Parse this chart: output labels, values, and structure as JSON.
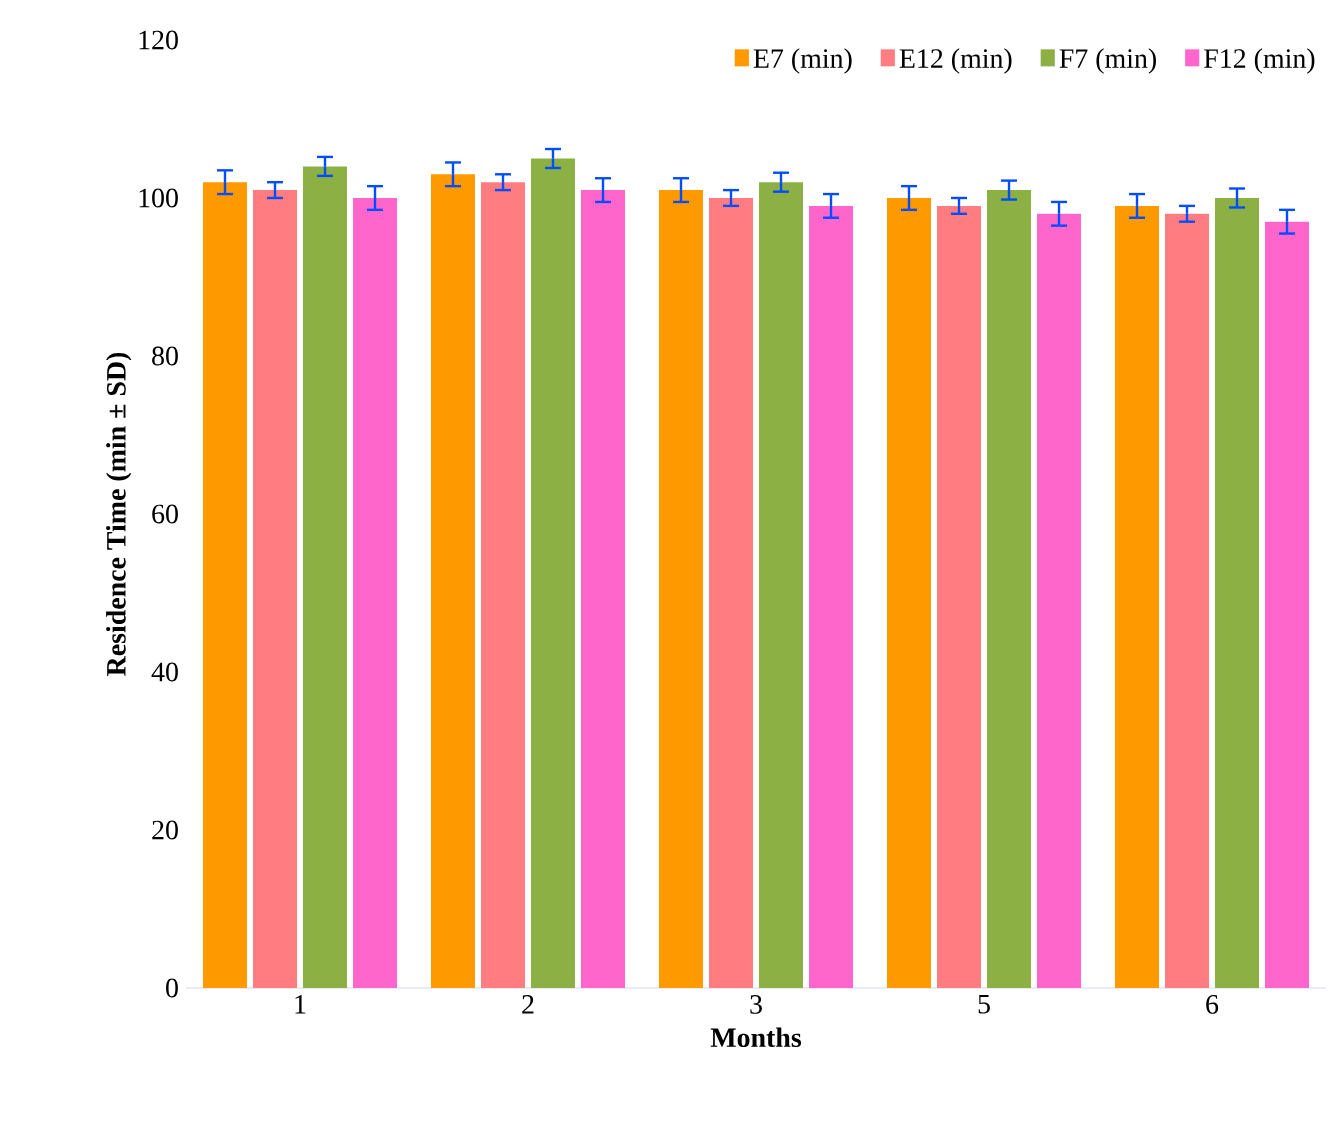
{
  "chart_data": {
    "type": "bar",
    "xlabel": "Months",
    "ylabel": "Residence Time (min ± SD)",
    "categories": [
      "1",
      "2",
      "3",
      "5",
      "6"
    ],
    "ylim": [
      0,
      120
    ],
    "yticks": [
      0,
      20,
      40,
      60,
      80,
      100,
      120
    ],
    "legend": "top right",
    "series": [
      {
        "name": "E7 (min)",
        "color": "#ff9900",
        "values": [
          102,
          103,
          101,
          100,
          99
        ],
        "errors": [
          1.5,
          1.5,
          1.5,
          1.5,
          1.5
        ]
      },
      {
        "name": "E12 (min)",
        "color": "#ff7c80",
        "values": [
          101,
          102,
          100,
          99,
          98
        ],
        "errors": [
          1,
          1,
          1,
          1,
          1
        ]
      },
      {
        "name": "F7 (min)",
        "color": "#8cb043",
        "values": [
          104,
          105,
          102,
          101,
          100
        ],
        "errors": [
          1.2,
          1.2,
          1.2,
          1.2,
          1.2
        ]
      },
      {
        "name": "F12 (min)",
        "color": "#ff66cc",
        "values": [
          100,
          101,
          99,
          98,
          97
        ],
        "errors": [
          1.5,
          1.5,
          1.5,
          1.5,
          1.5
        ]
      }
    ]
  }
}
